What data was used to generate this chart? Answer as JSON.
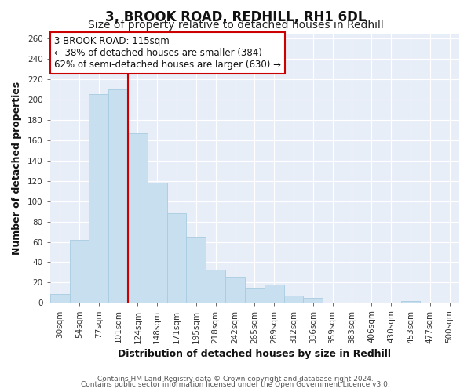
{
  "title": "3, BROOK ROAD, REDHILL, RH1 6DL",
  "subtitle": "Size of property relative to detached houses in Redhill",
  "xlabel": "Distribution of detached houses by size in Redhill",
  "ylabel": "Number of detached properties",
  "footer_lines": [
    "Contains HM Land Registry data © Crown copyright and database right 2024.",
    "Contains public sector information licensed under the Open Government Licence v3.0."
  ],
  "bin_labels": [
    "30sqm",
    "54sqm",
    "77sqm",
    "101sqm",
    "124sqm",
    "148sqm",
    "171sqm",
    "195sqm",
    "218sqm",
    "242sqm",
    "265sqm",
    "289sqm",
    "312sqm",
    "336sqm",
    "359sqm",
    "383sqm",
    "406sqm",
    "430sqm",
    "453sqm",
    "477sqm",
    "500sqm"
  ],
  "bar_heights": [
    9,
    62,
    205,
    210,
    167,
    118,
    88,
    65,
    33,
    26,
    15,
    18,
    7,
    5,
    0,
    0,
    0,
    0,
    2,
    0,
    0
  ],
  "bar_color": "#c8dff0",
  "bar_edge_color": "#a8cce0",
  "vline_x_index": 3.5,
  "vline_color": "#cc0000",
  "annotation_text": "3 BROOK ROAD: 115sqm\n← 38% of detached houses are smaller (384)\n62% of semi-detached houses are larger (630) →",
  "annotation_box_color": "#ffffff",
  "annotation_box_edge": "#cc0000",
  "ylim": [
    0,
    265
  ],
  "yticks": [
    0,
    20,
    40,
    60,
    80,
    100,
    120,
    140,
    160,
    180,
    200,
    220,
    240,
    260
  ],
  "figure_bg": "#ffffff",
  "axes_bg": "#e8eef8",
  "grid_color": "#ffffff",
  "title_fontsize": 12,
  "subtitle_fontsize": 10,
  "axis_label_fontsize": 9,
  "tick_fontsize": 7.5,
  "annotation_fontsize": 8.5,
  "footer_fontsize": 6.5
}
